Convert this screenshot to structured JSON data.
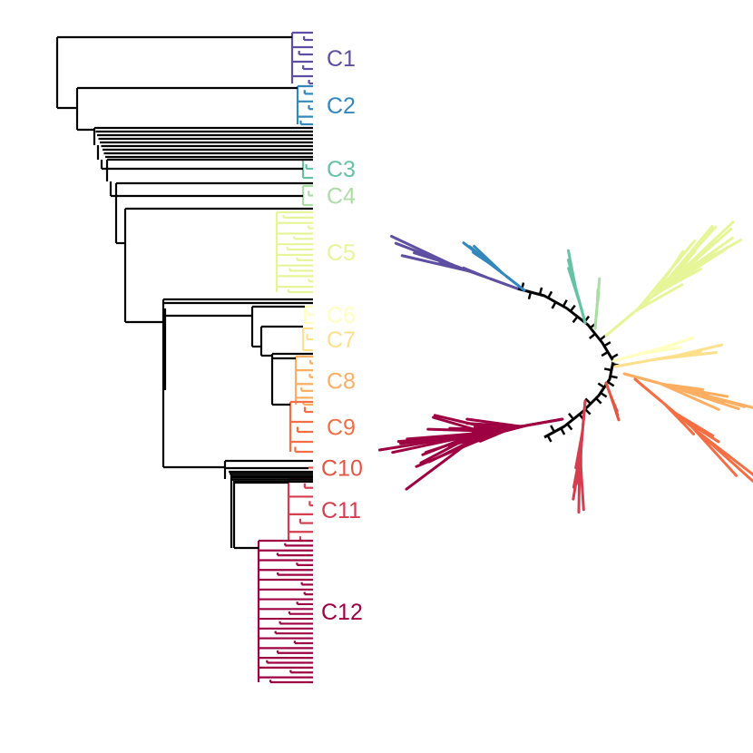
{
  "figure": {
    "title": "",
    "left_panel": "rectangular-dendrogram",
    "right_panel": "unrooted-radial-tree",
    "backbone_color": "#000000"
  },
  "clusters": [
    {
      "label": "C1",
      "color": "#5E4FA2",
      "leaves": 8
    },
    {
      "label": "C2",
      "color": "#3288BD",
      "leaves": 6
    },
    {
      "label": "C3",
      "color": "#66C2A5",
      "leaves": 3
    },
    {
      "label": "C4",
      "color": "#ABDDA4",
      "leaves": 3
    },
    {
      "label": "C5",
      "color": "#E6F598",
      "leaves": 16
    },
    {
      "label": "C6",
      "color": "#FFFFBF",
      "leaves": 3
    },
    {
      "label": "C7",
      "color": "#FEE08B",
      "leaves": 3
    },
    {
      "label": "C8",
      "color": "#FDAE61",
      "leaves": 8
    },
    {
      "label": "C9",
      "color": "#F46D43",
      "leaves": 6
    },
    {
      "label": "C10",
      "color": "#E35644",
      "leaves": 1
    },
    {
      "label": "C11",
      "color": "#D53E4F",
      "leaves": 8
    },
    {
      "label": "C12",
      "color": "#9E0142",
      "leaves": 30
    }
  ]
}
